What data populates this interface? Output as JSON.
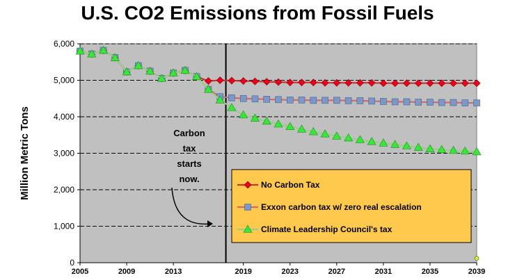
{
  "chart_data": {
    "type": "line",
    "title": "U.S. CO2 Emissions from Fossil Fuels",
    "xlabel": "",
    "ylabel": "Million Metric Tons",
    "ylim": [
      0,
      6000
    ],
    "xlim": [
      2005,
      2039
    ],
    "y_ticks": [
      0,
      1000,
      2000,
      3000,
      4000,
      5000,
      6000
    ],
    "y_tick_labels": [
      "0",
      "1,000",
      "2,000",
      "3,000",
      "4,000",
      "5,000",
      "6,000"
    ],
    "x_ticks": [
      2005,
      2009,
      2013,
      2019,
      2023,
      2027,
      2031,
      2035,
      2039
    ],
    "x_tick_labels": [
      "2005",
      "2009",
      "2013",
      "2019",
      "2023",
      "2027",
      "2031",
      "2035",
      "2039"
    ],
    "grid": "horizontal dashed",
    "plot_background": "#c0c0c0",
    "vline_x": 2017.5,
    "annotation": {
      "lines": [
        "Carbon",
        "tax",
        "starts",
        "now."
      ]
    },
    "legend": {
      "placement": "bottom-right",
      "background": "#ffc94d"
    },
    "series": [
      {
        "name": "No Carbon Tax",
        "color": "#c0392b",
        "marker": "diamond",
        "marker_color": "#e8001c",
        "x": [
          2005,
          2006,
          2007,
          2008,
          2009,
          2010,
          2011,
          2012,
          2013,
          2014,
          2015,
          2016,
          2017,
          2018,
          2019,
          2020,
          2021,
          2022,
          2023,
          2024,
          2025,
          2026,
          2027,
          2028,
          2029,
          2030,
          2031,
          2032,
          2033,
          2034,
          2035,
          2036,
          2037,
          2038,
          2039
        ],
        "values": [
          5800,
          5720,
          5820,
          5620,
          5230,
          5400,
          5250,
          5050,
          5200,
          5270,
          5100,
          4980,
          5000,
          4990,
          4980,
          4970,
          4960,
          4950,
          4940,
          4940,
          4940,
          4930,
          4930,
          4930,
          4930,
          4930,
          4920,
          4920,
          4920,
          4920,
          4920,
          4920,
          4920,
          4920,
          4920
        ]
      },
      {
        "name": "Exxon carbon tax w/ zero real escalation",
        "color": "#d46a6a",
        "marker": "square",
        "marker_color": "#7b98c9",
        "x": [
          2005,
          2006,
          2007,
          2008,
          2009,
          2010,
          2011,
          2012,
          2013,
          2014,
          2015,
          2016,
          2017,
          2018,
          2019,
          2020,
          2021,
          2022,
          2023,
          2024,
          2025,
          2026,
          2027,
          2028,
          2029,
          2030,
          2031,
          2032,
          2033,
          2034,
          2035,
          2036,
          2037,
          2038,
          2039
        ],
        "values": [
          5800,
          5720,
          5820,
          5620,
          5230,
          5400,
          5250,
          5050,
          5200,
          5270,
          5100,
          4750,
          4550,
          4520,
          4500,
          4490,
          4480,
          4470,
          4460,
          4460,
          4450,
          4450,
          4450,
          4440,
          4440,
          4430,
          4420,
          4410,
          4410,
          4400,
          4400,
          4390,
          4390,
          4380,
          4380
        ]
      },
      {
        "name": "Climate Leadership Council's tax",
        "color": "#9acd8a",
        "marker": "triangle",
        "marker_color": "#39e639",
        "x": [
          2005,
          2006,
          2007,
          2008,
          2009,
          2010,
          2011,
          2012,
          2013,
          2014,
          2015,
          2016,
          2017,
          2018,
          2019,
          2020,
          2021,
          2022,
          2023,
          2024,
          2025,
          2026,
          2027,
          2028,
          2029,
          2030,
          2031,
          2032,
          2033,
          2034,
          2035,
          2036,
          2037,
          2038,
          2039
        ],
        "values": [
          5800,
          5720,
          5820,
          5620,
          5230,
          5400,
          5250,
          5050,
          5200,
          5270,
          5100,
          4750,
          4460,
          4250,
          4050,
          3960,
          3880,
          3800,
          3730,
          3660,
          3590,
          3530,
          3470,
          3420,
          3370,
          3320,
          3280,
          3240,
          3200,
          3160,
          3120,
          3100,
          3080,
          3060,
          3040
        ]
      }
    ]
  }
}
